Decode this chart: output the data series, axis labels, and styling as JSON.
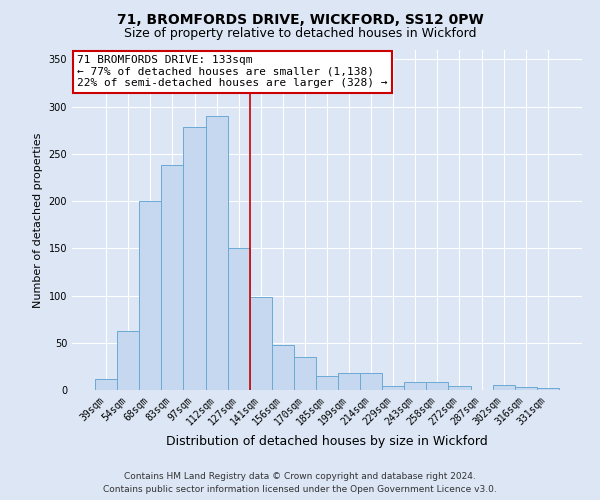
{
  "title": "71, BROMFORDS DRIVE, WICKFORD, SS12 0PW",
  "subtitle": "Size of property relative to detached houses in Wickford",
  "xlabel": "Distribution of detached houses by size in Wickford",
  "ylabel": "Number of detached properties",
  "categories": [
    "39sqm",
    "54sqm",
    "68sqm",
    "83sqm",
    "97sqm",
    "112sqm",
    "127sqm",
    "141sqm",
    "156sqm",
    "170sqm",
    "185sqm",
    "199sqm",
    "214sqm",
    "229sqm",
    "243sqm",
    "258sqm",
    "272sqm",
    "287sqm",
    "302sqm",
    "316sqm",
    "331sqm"
  ],
  "values": [
    12,
    63,
    200,
    238,
    278,
    290,
    150,
    98,
    48,
    35,
    15,
    18,
    18,
    4,
    9,
    9,
    4,
    0,
    5,
    3,
    2
  ],
  "bar_color": "#c5d8f0",
  "bar_edge_color": "#6aaad4",
  "vline_x": 7.0,
  "vline_color": "#cc0000",
  "annotation_text": "71 BROMFORDS DRIVE: 133sqm\n← 77% of detached houses are smaller (1,138)\n22% of semi-detached houses are larger (328) →",
  "annotation_box_facecolor": "#ffffff",
  "annotation_box_edgecolor": "#cc0000",
  "ylim": [
    0,
    360
  ],
  "yticks": [
    0,
    50,
    100,
    150,
    200,
    250,
    300,
    350
  ],
  "background_color": "#dce6f5",
  "plot_background": "#dce6f5",
  "grid_color": "#ffffff",
  "footer_line1": "Contains HM Land Registry data © Crown copyright and database right 2024.",
  "footer_line2": "Contains public sector information licensed under the Open Government Licence v3.0.",
  "title_fontsize": 10,
  "subtitle_fontsize": 9,
  "xlabel_fontsize": 9,
  "ylabel_fontsize": 8,
  "tick_fontsize": 7,
  "annotation_fontsize": 8,
  "footer_fontsize": 6.5
}
